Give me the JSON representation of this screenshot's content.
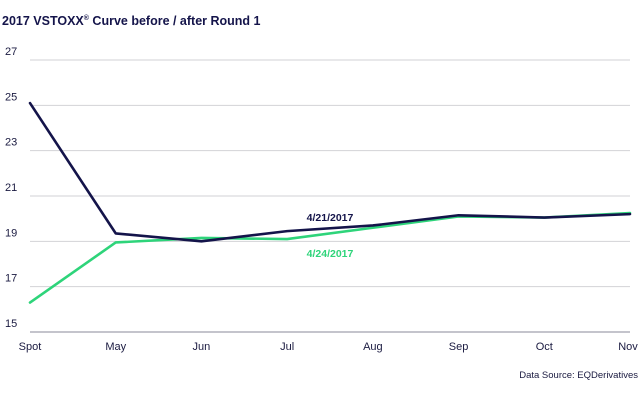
{
  "chart_data": {
    "type": "line",
    "title_main": "2017 VSTOXX",
    "title_sup": "®",
    "title_rest": " Curve before / after Round 1",
    "categories": [
      "Spot",
      "May",
      "Jun",
      "Jul",
      "Aug",
      "Sep",
      "Oct",
      "Nov"
    ],
    "yticks": [
      15,
      17,
      19,
      21,
      23,
      25,
      27
    ],
    "ylim": [
      15,
      27
    ],
    "grid": true,
    "series": [
      {
        "name": "4/21/2017",
        "color": "#14144a",
        "values": [
          25.1,
          19.35,
          19.0,
          19.45,
          19.7,
          20.15,
          20.05,
          20.2
        ]
      },
      {
        "name": "4/24/2017",
        "color": "#2ed47a",
        "values": [
          16.3,
          18.95,
          19.15,
          19.1,
          19.6,
          20.1,
          20.05,
          20.25
        ]
      }
    ],
    "source": "Data Source: EQDerivatives"
  }
}
